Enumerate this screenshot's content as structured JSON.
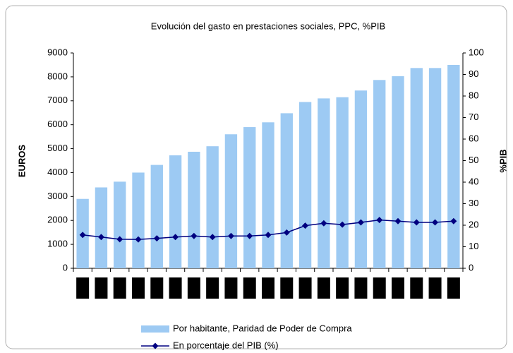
{
  "chart_data": {
    "type": "bar_line",
    "title": "Evolución del gasto en prestaciones sociales, PPC, %PIB",
    "ylabel": "EUROS",
    "y2label": "%PIB",
    "categories": [
      null,
      null,
      null,
      null,
      null,
      null,
      null,
      null,
      null,
      null,
      null,
      null,
      null,
      null,
      null,
      null,
      null,
      null,
      null,
      null,
      null
    ],
    "series": [
      {
        "name": "Por habitante, Paridad de Poder de Compra",
        "color": "#9dcaf3",
        "kind": "bar",
        "values": [
          2900,
          3380,
          3620,
          4000,
          4320,
          4720,
          4870,
          5100,
          5600,
          5900,
          6100,
          6480,
          6950,
          7100,
          7150,
          7430,
          7870,
          8030,
          8370,
          8370,
          8500
        ]
      },
      {
        "name": "En porcentaje del PIB (%)",
        "color": "#000080",
        "kind": "line",
        "axis": "y2",
        "values": [
          15.5,
          14.5,
          13.5,
          13.4,
          13.9,
          14.5,
          15,
          14.5,
          15,
          15,
          15.5,
          16.6,
          19.8,
          20.9,
          20.3,
          21.3,
          22.4,
          21.9,
          21.3,
          21.3,
          21.9
        ]
      }
    ],
    "ylim": [
      0,
      9000
    ],
    "yticks": [
      0,
      1000,
      2000,
      3000,
      4000,
      5000,
      6000,
      7000,
      8000,
      9000
    ],
    "y2lim": [
      0,
      100
    ],
    "y2ticks": [
      0,
      10,
      20,
      30,
      40,
      50,
      60,
      70,
      80,
      90,
      100
    ],
    "grid": false,
    "legend": "bottom"
  }
}
